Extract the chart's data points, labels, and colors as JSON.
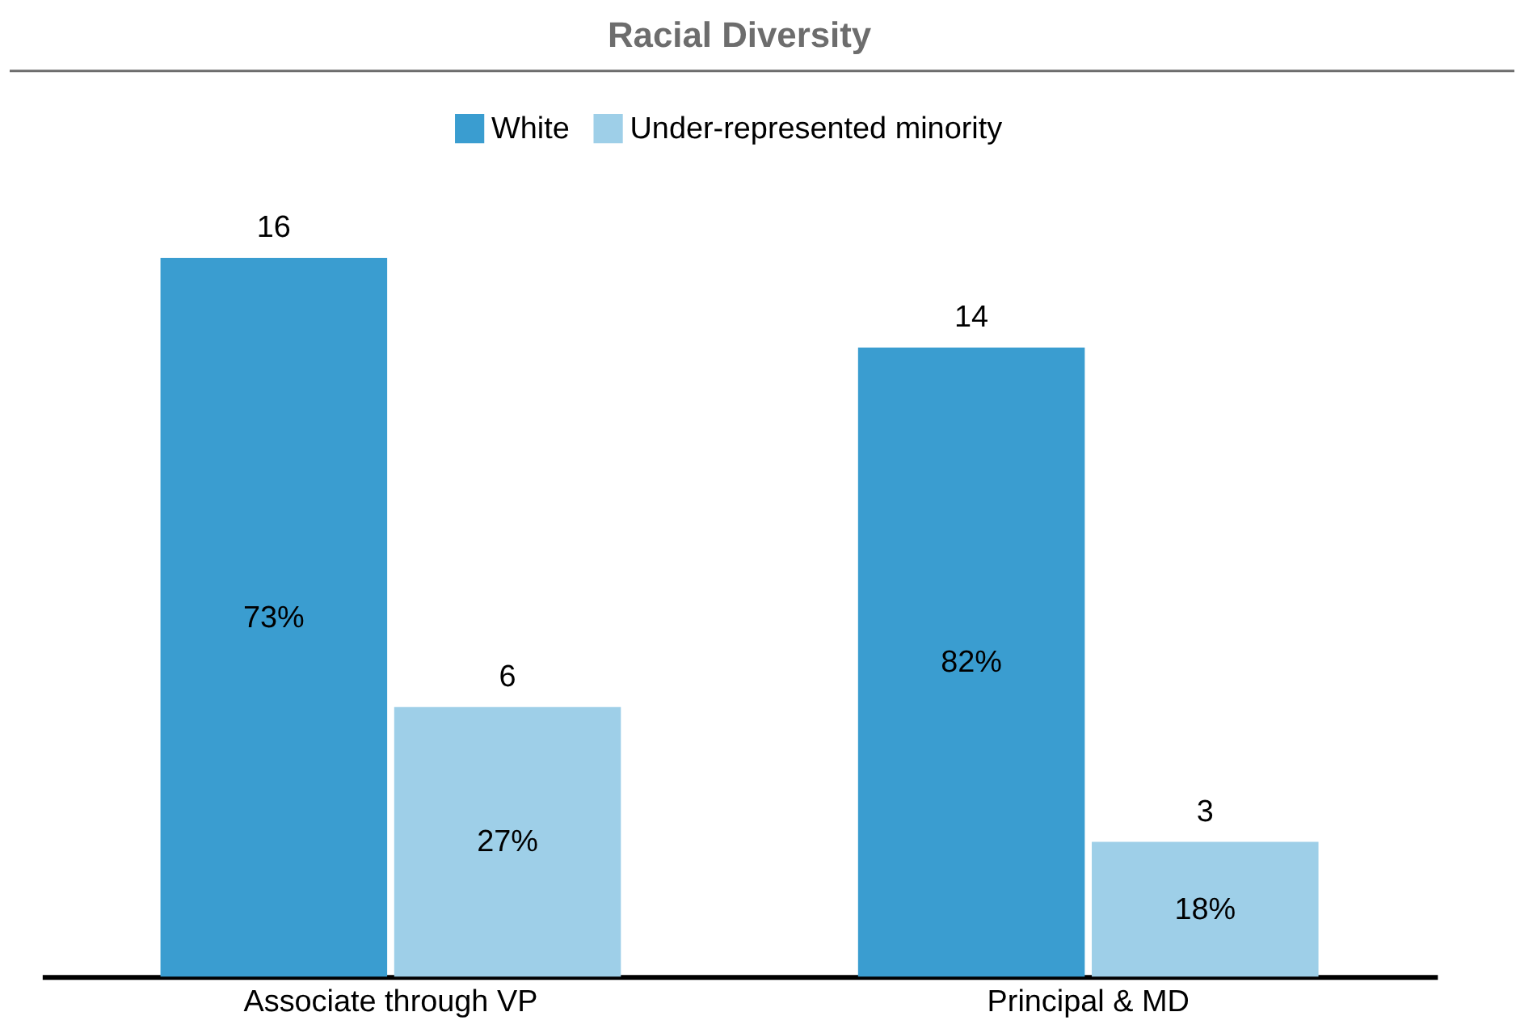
{
  "chart_data": {
    "type": "bar",
    "title": "Racial Diversity",
    "categories": [
      "Associate through VP",
      "Principal & MD"
    ],
    "series": [
      {
        "name": "White",
        "color": "#3a9dd0",
        "values": [
          16,
          14
        ]
      },
      {
        "name": "Under-represented minority",
        "color": "#9ecfe8",
        "values": [
          6,
          3
        ]
      }
    ],
    "data_labels": true,
    "legend": "top",
    "annotations": [
      "73%",
      "82%",
      "27%",
      "18%"
    ]
  }
}
